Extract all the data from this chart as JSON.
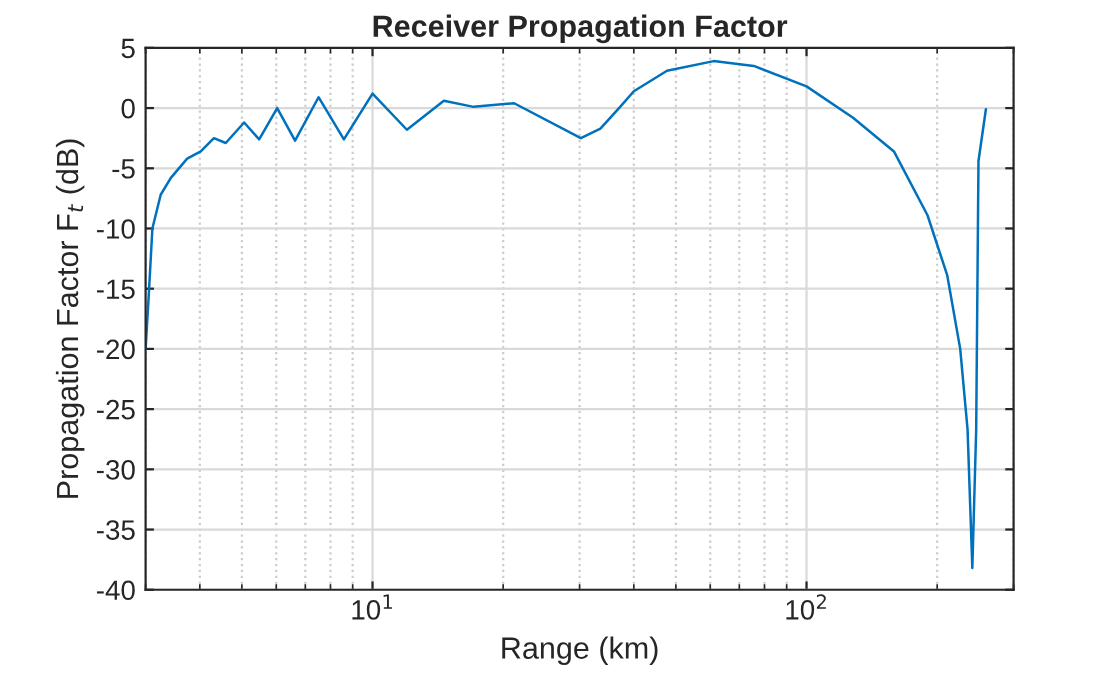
{
  "chart_data": {
    "type": "line",
    "title": "Receiver Propagation Factor",
    "xlabel": "Range (km)",
    "ylabel": "Propagation Factor F$_{t}$ (dB)",
    "log": "x",
    "grid": true,
    "marker": "none",
    "line_style": "solid",
    "xlim": [
      3,
      300
    ],
    "ylim": [
      -40,
      5
    ],
    "xticks": [
      {
        "value": 3,
        "label": null
      },
      {
        "value": 4,
        "label": null
      },
      {
        "value": 5,
        "label": null
      },
      {
        "value": 6,
        "label": null
      },
      {
        "value": 7,
        "label": null
      },
      {
        "value": 8,
        "label": null
      },
      {
        "value": 9,
        "label": null
      },
      {
        "value": 10,
        "label": "10$^{1}$"
      },
      {
        "value": 20,
        "label": null
      },
      {
        "value": 30,
        "label": null
      },
      {
        "value": 40,
        "label": null
      },
      {
        "value": 50,
        "label": null
      },
      {
        "value": 60,
        "label": null
      },
      {
        "value": 70,
        "label": null
      },
      {
        "value": 80,
        "label": null
      },
      {
        "value": 90,
        "label": null
      },
      {
        "value": 100,
        "label": "10$^{2}$"
      },
      {
        "value": 200,
        "label": null
      },
      {
        "value": 300,
        "label": null
      }
    ],
    "yticks": [
      5,
      0,
      -5,
      -10,
      -15,
      -20,
      -25,
      -30,
      -35,
      -40
    ],
    "series": [
      {
        "color": "#0072bd",
        "x": [
          3.0,
          3.05,
          3.11,
          3.25,
          3.43,
          3.74,
          4.02,
          4.31,
          4.59,
          5.06,
          5.48,
          6.03,
          6.63,
          7.51,
          8.59,
          10,
          12.0,
          14.6,
          17.1,
          21.2,
          30.2,
          33.5,
          37.2,
          40,
          47.7,
          61.1,
          75.6,
          100,
          128,
          159,
          190,
          211,
          226,
          235,
          241,
          246,
          249,
          259
        ],
        "values": [
          -20,
          -15.6,
          -10,
          -7.2,
          -5.8,
          -4.2,
          -3.6,
          -2.5,
          -2.9,
          -1.2,
          -2.6,
          0,
          -2.7,
          0.9,
          -2.6,
          1.2,
          -1.8,
          0.6,
          0.1,
          0.4,
          -2.5,
          -1.7,
          0.1,
          1.4,
          3.1,
          3.9,
          3.5,
          1.8,
          -0.8,
          -3.6,
          -8.9,
          -13.9,
          -20,
          -26.7,
          -38.2,
          -26.7,
          -4.4,
          -0.1
        ]
      }
    ]
  }
}
